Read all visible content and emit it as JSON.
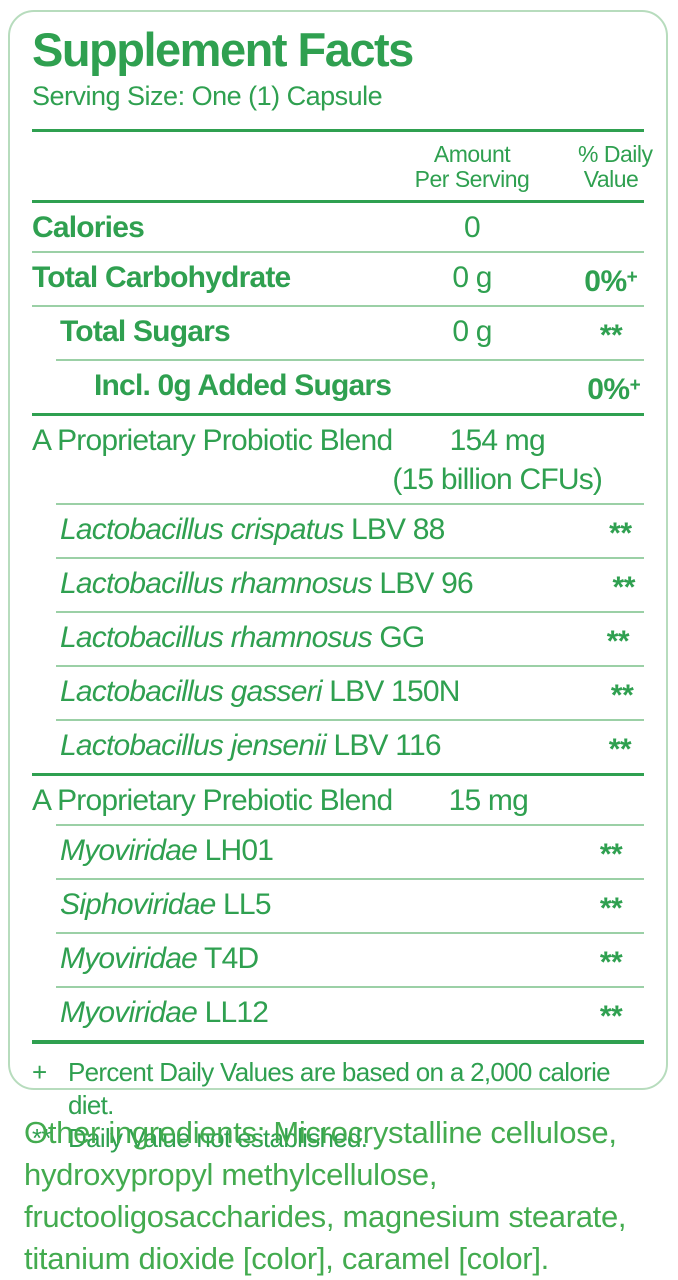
{
  "label": {
    "title": "Supplement Facts",
    "serving_size": "Serving Size: One (1) Capsule",
    "columns": {
      "amount_line1": "Amount",
      "amount_line2": "Per Serving",
      "dv_line1": "% Daily",
      "dv_line2": "Value"
    },
    "rows": [
      {
        "style": "bold",
        "indent": 0,
        "name": "Calories",
        "name_italic": "",
        "amount": "0",
        "amount2": "",
        "dv": "",
        "dv_sup": "",
        "sep": "thin-full"
      },
      {
        "style": "bold",
        "indent": 0,
        "name": "Total Carbohydrate",
        "name_italic": "",
        "amount": "0 g",
        "amount2": "",
        "dv": "0%",
        "dv_sup": "+",
        "sep": "thin-full"
      },
      {
        "style": "bold",
        "indent": 1,
        "name": "Total Sugars",
        "name_italic": "",
        "amount": "0 g",
        "amount2": "",
        "dv": "**",
        "dv_sup": "",
        "sep": "thin-indent"
      },
      {
        "style": "bold",
        "indent": 2,
        "name": "Incl. 0g Added Sugars",
        "name_italic": "",
        "amount": "",
        "amount2": "",
        "dv": "0%",
        "dv_sup": "+",
        "sep": "medium-full"
      },
      {
        "style": "regular",
        "indent": 0,
        "name": "A Proprietary Probiotic Blend",
        "name_italic": "",
        "amount": "154 mg",
        "amount2": "(15 billion CFUs)",
        "dv": "",
        "dv_sup": "",
        "sep": "thin-indent"
      },
      {
        "style": "species",
        "indent": 1,
        "name": " LBV 88",
        "name_italic": "Lactobacillus crispatus",
        "amount": "",
        "amount2": "",
        "dv": "**",
        "dv_sup": "",
        "sep": "thin-indent"
      },
      {
        "style": "species",
        "indent": 1,
        "name": " LBV 96",
        "name_italic": "Lactobacillus rhamnosus",
        "amount": "",
        "amount2": "",
        "dv": "**",
        "dv_sup": "",
        "sep": "thin-indent"
      },
      {
        "style": "species",
        "indent": 1,
        "name": " GG",
        "name_italic": "Lactobacillus rhamnosus",
        "amount": "",
        "amount2": "",
        "dv": "**",
        "dv_sup": "",
        "sep": "thin-indent"
      },
      {
        "style": "species",
        "indent": 1,
        "name": " LBV 150N",
        "name_italic": "Lactobacillus gasseri",
        "amount": "",
        "amount2": "",
        "dv": "**",
        "dv_sup": "",
        "sep": "thin-indent"
      },
      {
        "style": "species",
        "indent": 1,
        "name": " LBV 116",
        "name_italic": "Lactobacillus jensenii",
        "amount": "",
        "amount2": "",
        "dv": "**",
        "dv_sup": "",
        "sep": "medium-full"
      },
      {
        "style": "regular",
        "indent": 0,
        "name": "A Proprietary Prebiotic Blend",
        "name_italic": "",
        "amount": "15 mg",
        "amount2": "",
        "dv": "",
        "dv_sup": "",
        "sep": "thin-indent"
      },
      {
        "style": "species",
        "indent": 1,
        "name": " LH01",
        "name_italic": "Myoviridae",
        "amount": "",
        "amount2": "",
        "dv": "**",
        "dv_sup": "",
        "sep": "thin-indent"
      },
      {
        "style": "species",
        "indent": 1,
        "name": " LL5",
        "name_italic": "Siphoviridae",
        "amount": "",
        "amount2": "",
        "dv": "**",
        "dv_sup": "",
        "sep": "thin-indent"
      },
      {
        "style": "species",
        "indent": 1,
        "name": " T4D",
        "name_italic": "Myoviridae",
        "amount": "",
        "amount2": "",
        "dv": "**",
        "dv_sup": "",
        "sep": "thin-indent"
      },
      {
        "style": "species",
        "indent": 1,
        "name": " LL12",
        "name_italic": "Myoviridae",
        "amount": "",
        "amount2": "",
        "dv": "**",
        "dv_sup": "",
        "sep": "thick-full"
      }
    ],
    "footnotes": [
      {
        "symbol": "+",
        "text": "Percent Daily Values are based on a 2,000 calorie diet."
      },
      {
        "symbol": "**",
        "text": "Daily Value not established."
      }
    ]
  },
  "other_ingredients": "Other ingredients: Microcrystalline cellulose, hydroxypropyl methylcellulose, fructooligosaccharides, magnesium stearate, titanium dioxide [color], caramel [color].",
  "colors": {
    "text_green": "#2fa050",
    "light_green_rule": "#9bd0a6",
    "border_green": "#b7dcbd",
    "other_ingredients_green": "#43ab4f"
  }
}
